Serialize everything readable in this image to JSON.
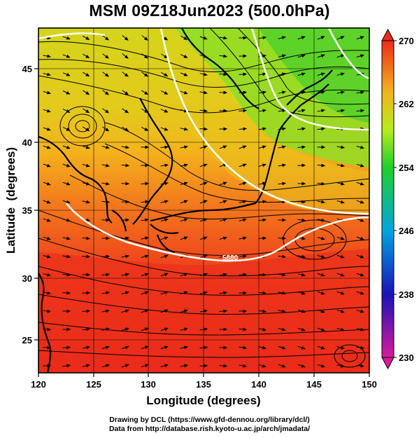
{
  "title": "MSM 09Z18Jun2023 (500.0hPa)",
  "map": {
    "xlabel": "Longitude (degrees)",
    "ylabel": "Latitude  (degrees)",
    "lon_range": [
      120,
      150
    ],
    "lat_range": [
      22.5,
      47.5
    ],
    "x_ticks": [
      "120",
      "125",
      "130",
      "135",
      "140",
      "145",
      "150"
    ],
    "y_ticks": [
      "25",
      "30",
      "35",
      "40",
      "45"
    ],
    "contour_labels": [
      "5880"
    ]
  },
  "colorbar": {
    "range": [
      230,
      270
    ],
    "tick_labels": [
      "270",
      "262",
      "254",
      "246",
      "238",
      "230"
    ],
    "colors": [
      "#d81b9b",
      "#1a12b8",
      "#00a6e0",
      "#20d02b",
      "#b8ec1a",
      "#f4b21c",
      "#ec2b1a"
    ]
  },
  "credits": [
    "Drawing by DCL (https://www.gfd-dennou.org/library/dcl/)",
    "Data from http://database.rish.kyoto-u.ac.jp/arch/jmadata/"
  ]
}
